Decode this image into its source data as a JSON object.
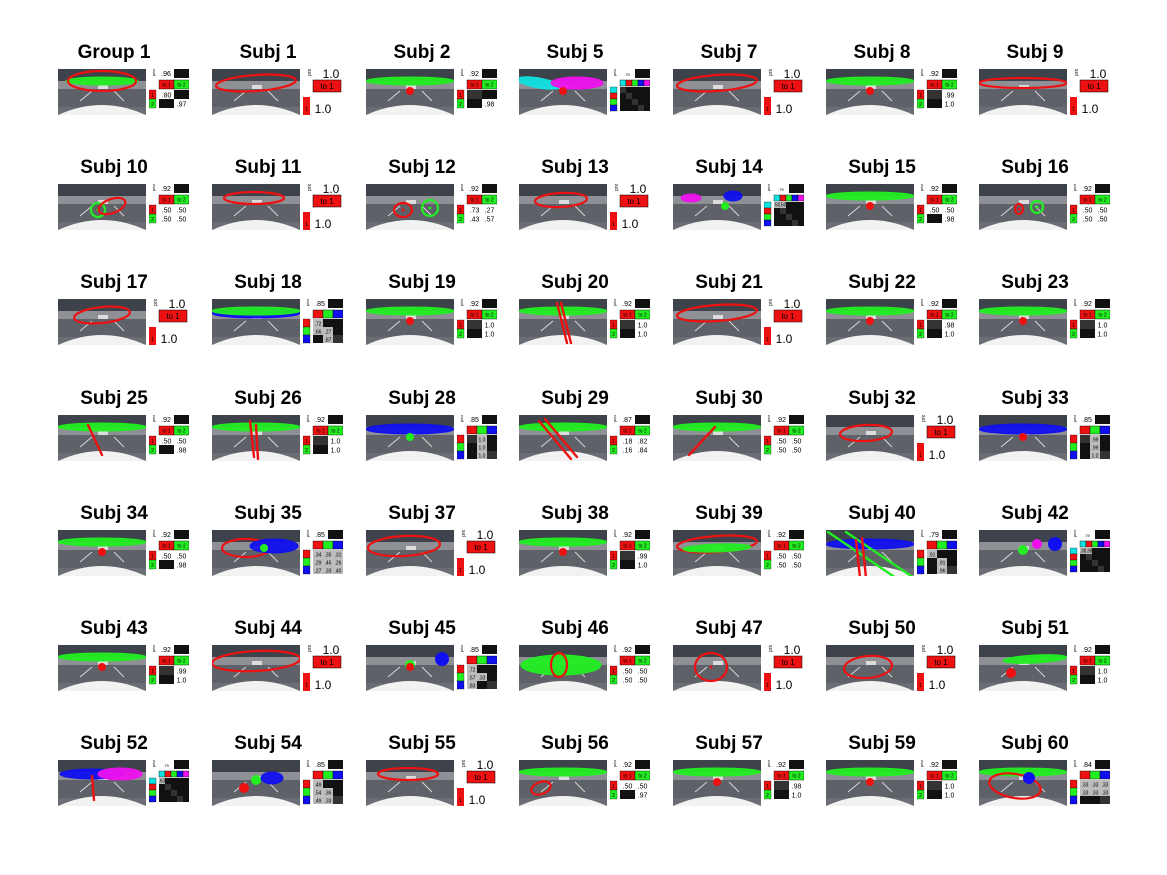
{
  "panels": [
    {
      "title": "Group 1",
      "style": "std2",
      "prior": ".96",
      "rows": [
        [
          ".80",
          ""
        ],
        [
          "",
          ".97"
        ]
      ],
      "shapes": [
        {
          "t": "e",
          "c": "g",
          "a": 1
        },
        {
          "t": "e",
          "c": "r",
          "a": 2
        }
      ]
    },
    {
      "title": "Subj 1",
      "style": "big",
      "prior": "1.0",
      "rows": [
        [
          "to 1"
        ],
        [
          "1.0"
        ]
      ],
      "shapes": [
        {
          "t": "e",
          "c": "r",
          "a": 3
        }
      ]
    },
    {
      "title": "Subj 2",
      "style": "std2",
      "prior": ".92",
      "rows": [
        [
          "",
          ""
        ],
        [
          "",
          ".98"
        ],
        [
          "",
          "1.0"
        ]
      ],
      "shapes": [
        {
          "t": "e",
          "c": "g",
          "a": 4
        },
        {
          "t": "d",
          "c": "r",
          "a": 5
        }
      ]
    },
    {
      "title": "Subj 5",
      "style": "std5",
      "prior": ".79",
      "rows": [
        [
          "",
          ""
        ]
      ],
      "shapes": [
        {
          "t": "e",
          "c": "c",
          "a": 6
        },
        {
          "t": "e",
          "c": "m",
          "a": 7
        },
        {
          "t": "d",
          "c": "r",
          "a": 5
        }
      ]
    },
    {
      "title": "Subj 7",
      "style": "big",
      "prior": "1.0",
      "rows": [
        [
          "to 1"
        ],
        [
          "1.0"
        ]
      ],
      "shapes": [
        {
          "t": "e",
          "c": "r",
          "a": 3
        }
      ]
    },
    {
      "title": "Subj 8",
      "style": "std2",
      "prior": ".92",
      "rows": [
        [
          "",
          ".99"
        ],
        [
          "",
          "1.0"
        ]
      ],
      "shapes": [
        {
          "t": "e",
          "c": "g",
          "a": 4
        },
        {
          "t": "d",
          "c": "r",
          "a": 5
        }
      ]
    },
    {
      "title": "Subj 9",
      "style": "big",
      "prior": "1.0",
      "rows": [
        [
          "to 1"
        ],
        [
          "1.0"
        ]
      ],
      "shapes": [
        {
          "t": "e",
          "c": "r",
          "a": 8
        }
      ]
    },
    {
      "title": "Subj 10",
      "style": "std2",
      "prior": ".92",
      "rows": [
        [
          ".50",
          ".50"
        ],
        [
          ".50",
          ".50"
        ]
      ],
      "shapes": [
        {
          "t": "c",
          "c": "g",
          "a": 9
        },
        {
          "t": "e",
          "c": "r",
          "a": 10
        }
      ]
    },
    {
      "title": "Subj 11",
      "style": "big",
      "prior": "1.0",
      "rows": [
        [
          "to 1"
        ],
        [
          "1.0"
        ]
      ],
      "shapes": [
        {
          "t": "e",
          "c": "r",
          "a": 11
        }
      ]
    },
    {
      "title": "Subj 12",
      "style": "std2",
      "prior": ".92",
      "rows": [
        [
          ".73",
          ".27"
        ],
        [
          ".43",
          ".57"
        ]
      ],
      "shapes": [
        {
          "t": "c",
          "c": "r",
          "a": 12
        },
        {
          "t": "c",
          "c": "g",
          "a": 13
        }
      ]
    },
    {
      "title": "Subj 13",
      "style": "big",
      "prior": "1.0",
      "rows": [
        [
          "to 1"
        ],
        [
          "1.0"
        ]
      ],
      "shapes": [
        {
          "t": "e",
          "c": "r",
          "a": 14
        }
      ]
    },
    {
      "title": "Subj 14",
      "style": "std5",
      "prior": ".79",
      "rows": [
        [
          ".50",
          ".50"
        ]
      ],
      "shapes": [
        {
          "t": "e",
          "c": "m",
          "a": 15
        },
        {
          "t": "d",
          "c": "g",
          "a": 16
        },
        {
          "t": "e",
          "c": "b",
          "a": 17
        }
      ]
    },
    {
      "title": "Subj 15",
      "style": "std2",
      "prior": ".92",
      "rows": [
        [
          ".50",
          ".50"
        ],
        [
          "",
          ".98"
        ]
      ],
      "shapes": [
        {
          "t": "e",
          "c": "g",
          "a": 4
        },
        {
          "t": "d",
          "c": "r",
          "a": 5
        }
      ]
    },
    {
      "title": "Subj 16",
      "style": "std2",
      "prior": ".92",
      "rows": [
        [
          ".50",
          ".50"
        ],
        [
          ".50",
          ".50"
        ]
      ],
      "shapes": [
        {
          "t": "c",
          "c": "r",
          "a": 18
        },
        {
          "t": "c",
          "c": "g",
          "a": 19
        }
      ]
    },
    {
      "title": "Subj 17",
      "style": "big",
      "prior": "1.0",
      "rows": [
        [
          "to 1"
        ],
        [
          "1.0"
        ]
      ],
      "shapes": [
        {
          "t": "e",
          "c": "r",
          "a": 20
        }
      ]
    },
    {
      "title": "Subj 18",
      "style": "std3",
      "prior": ".85",
      "rows": [
        [
          ".72",
          ""
        ],
        [
          ".66",
          ".27"
        ],
        [
          "",
          ".87"
        ]
      ],
      "shapes": [
        {
          "t": "e",
          "c": "b",
          "a": 21
        },
        {
          "t": "e",
          "c": "g",
          "a": 4
        }
      ]
    },
    {
      "title": "Subj 19",
      "style": "std2",
      "prior": ".92",
      "rows": [
        [
          "",
          "1.0"
        ],
        [
          "",
          "1.0"
        ]
      ],
      "shapes": [
        {
          "t": "e",
          "c": "g",
          "a": 4
        },
        {
          "t": "d",
          "c": "r",
          "a": 5
        }
      ]
    },
    {
      "title": "Subj 20",
      "style": "std2",
      "prior": ".92",
      "rows": [
        [
          "",
          "1.0"
        ],
        [
          "",
          "1.0"
        ]
      ],
      "shapes": [
        {
          "t": "e",
          "c": "g",
          "a": 4
        },
        {
          "t": "l",
          "c": "r",
          "a": 22
        }
      ]
    },
    {
      "title": "Subj 21",
      "style": "big",
      "prior": "1.0",
      "rows": [
        [
          "to 1"
        ],
        [
          "1.0"
        ]
      ],
      "shapes": [
        {
          "t": "e",
          "c": "r",
          "a": 3
        }
      ]
    },
    {
      "title": "Subj 22",
      "style": "std2",
      "prior": ".92",
      "rows": [
        [
          "",
          ".98"
        ],
        [
          "",
          "1.0"
        ]
      ],
      "shapes": [
        {
          "t": "e",
          "c": "g",
          "a": 4
        },
        {
          "t": "d",
          "c": "r",
          "a": 5
        }
      ]
    },
    {
      "title": "Subj 23",
      "style": "std2",
      "prior": ".92",
      "rows": [
        [
          "",
          "1.0"
        ],
        [
          "",
          "1.0"
        ]
      ],
      "shapes": [
        {
          "t": "e",
          "c": "g",
          "a": 4
        },
        {
          "t": "d",
          "c": "r",
          "a": 5
        }
      ]
    },
    {
      "title": "Subj 25",
      "style": "std2",
      "prior": ".92",
      "rows": [
        [
          ".50",
          ".50"
        ],
        [
          "",
          ".98"
        ]
      ],
      "shapes": [
        {
          "t": "e",
          "c": "g",
          "a": 4
        },
        {
          "t": "l",
          "c": "r",
          "a": 23
        }
      ]
    },
    {
      "title": "Subj 26",
      "style": "std2",
      "prior": ".92",
      "rows": [
        [
          "",
          "1.0"
        ],
        [
          "",
          "1.0"
        ]
      ],
      "shapes": [
        {
          "t": "e",
          "c": "g",
          "a": 4
        },
        {
          "t": "l",
          "c": "r",
          "a": 24
        }
      ]
    },
    {
      "title": "Subj 28",
      "style": "std3",
      "prior": ".85",
      "rows": [
        [
          "",
          "1.0"
        ],
        [
          "",
          "1.0"
        ],
        [
          "",
          "1.0"
        ]
      ],
      "shapes": [
        {
          "t": "e",
          "c": "b",
          "a": 21
        },
        {
          "t": "d",
          "c": "g",
          "a": 5
        }
      ]
    },
    {
      "title": "Subj 29",
      "style": "std2",
      "prior": ".87",
      "rows": [
        [
          ".18",
          ".82"
        ],
        [
          ".16",
          ".84"
        ]
      ],
      "shapes": [
        {
          "t": "e",
          "c": "g",
          "a": 4
        },
        {
          "t": "l",
          "c": "r",
          "a": 25
        }
      ]
    },
    {
      "title": "Subj 30",
      "style": "std2",
      "prior": ".92",
      "rows": [
        [
          ".50",
          ".50"
        ],
        [
          ".50",
          ".50"
        ]
      ],
      "shapes": [
        {
          "t": "e",
          "c": "g",
          "a": 4
        },
        {
          "t": "l",
          "c": "r",
          "a": 26
        }
      ]
    },
    {
      "title": "Subj 32",
      "style": "big",
      "prior": "1.0",
      "rows": [
        [
          "to 1"
        ],
        [
          "1.0"
        ]
      ],
      "shapes": [
        {
          "t": "e",
          "c": "r",
          "a": 27
        }
      ]
    },
    {
      "title": "Subj 33",
      "style": "std3",
      "prior": ".85",
      "rows": [
        [
          "",
          ".99"
        ],
        [
          "",
          ".99"
        ],
        [
          "",
          "1.0"
        ]
      ],
      "shapes": [
        {
          "t": "e",
          "c": "b",
          "a": 21
        },
        {
          "t": "d",
          "c": "r",
          "a": 5
        }
      ]
    },
    {
      "title": "Subj 34",
      "style": "std2",
      "prior": ".92",
      "rows": [
        [
          ".50",
          ".50"
        ],
        [
          "",
          ".98"
        ]
      ],
      "shapes": [
        {
          "t": "e",
          "c": "g",
          "a": 4
        },
        {
          "t": "d",
          "c": "r",
          "a": 5
        }
      ]
    },
    {
      "title": "Subj 35",
      "style": "std3",
      "prior": ".85",
      "rows": [
        [
          ".34",
          ".35",
          ".31"
        ],
        [
          ".29",
          ".45",
          ".26"
        ],
        [
          ".27",
          ".33",
          ".40"
        ]
      ],
      "shapes": [
        {
          "t": "e",
          "c": "r",
          "a": 28
        },
        {
          "t": "e",
          "c": "b",
          "a": 29
        },
        {
          "t": "d",
          "c": "g",
          "a": 30
        }
      ]
    },
    {
      "title": "Subj 37",
      "style": "big",
      "prior": "1.0",
      "rows": [
        [
          "to 1"
        ],
        [
          "1.0"
        ]
      ],
      "shapes": [
        {
          "t": "e",
          "c": "r",
          "a": 31
        }
      ]
    },
    {
      "title": "Subj 38",
      "style": "std2",
      "prior": ".92",
      "rows": [
        [
          "",
          ".99"
        ],
        [
          "",
          "1.0"
        ]
      ],
      "shapes": [
        {
          "t": "e",
          "c": "g",
          "a": 4
        },
        {
          "t": "d",
          "c": "r",
          "a": 5
        }
      ]
    },
    {
      "title": "Subj 39",
      "style": "std2",
      "prior": ".92",
      "rows": [
        [
          ".50",
          ".50"
        ],
        [
          ".50",
          ".50"
        ]
      ],
      "shapes": [
        {
          "t": "e",
          "c": "r",
          "a": 3
        },
        {
          "t": "e",
          "c": "g",
          "a": 32
        }
      ]
    },
    {
      "title": "Subj 40",
      "style": "std3",
      "prior": ".79",
      "rows": [
        [
          ".91",
          ""
        ],
        [
          "",
          ".91"
        ],
        [
          "",
          ".96"
        ]
      ],
      "shapes": [
        {
          "t": "e",
          "c": "b",
          "a": 21
        },
        {
          "t": "l",
          "c": "g",
          "a": 33
        },
        {
          "t": "l",
          "c": "r",
          "a": 34
        }
      ]
    },
    {
      "title": "Subj 42",
      "style": "std5",
      "prior": ".79",
      "rows": [
        [
          ".38",
          ".38"
        ]
      ],
      "shapes": [
        {
          "t": "d",
          "c": "m",
          "a": 35
        },
        {
          "t": "d",
          "c": "b",
          "a": 36
        },
        {
          "t": "d",
          "c": "g",
          "a": 37
        }
      ]
    },
    {
      "title": "Subj 43",
      "style": "std2",
      "prior": ".92",
      "rows": [
        [
          "",
          ".99"
        ],
        [
          "",
          "1.0"
        ]
      ],
      "shapes": [
        {
          "t": "e",
          "c": "g",
          "a": 4
        },
        {
          "t": "d",
          "c": "r",
          "a": 5
        }
      ]
    },
    {
      "title": "Subj 44",
      "style": "big",
      "prior": "1.0",
      "rows": [
        [
          "to 1"
        ],
        [
          "1.0"
        ]
      ],
      "shapes": [
        {
          "t": "e",
          "c": "r",
          "a": 38
        }
      ]
    },
    {
      "title": "Subj 45",
      "style": "std3",
      "prior": ".85",
      "rows": [
        [
          ".72",
          ""
        ],
        [
          ".57",
          ".33"
        ],
        [
          ".83",
          ""
        ]
      ],
      "shapes": [
        {
          "t": "d",
          "c": "g",
          "a": 37
        },
        {
          "t": "d",
          "c": "b",
          "a": 36
        },
        {
          "t": "d",
          "c": "r",
          "a": 5
        }
      ]
    },
    {
      "title": "Subj 46",
      "style": "std2",
      "prior": ".92",
      "rows": [
        [
          ".50",
          ".50"
        ],
        [
          ".50",
          ".50"
        ]
      ],
      "shapes": [
        {
          "t": "e",
          "c": "g",
          "a": 39
        },
        {
          "t": "e",
          "c": "r",
          "a": 40
        }
      ]
    },
    {
      "title": "Subj 47",
      "style": "big",
      "prior": "1.0",
      "rows": [
        [
          "to 1"
        ],
        [
          "1.0"
        ]
      ],
      "shapes": [
        {
          "t": "c",
          "c": "r",
          "a": 41
        }
      ]
    },
    {
      "title": "Subj 50",
      "style": "big",
      "prior": "1.0",
      "rows": [
        [
          "to 1"
        ],
        [
          "1.0"
        ]
      ],
      "shapes": [
        {
          "t": "e",
          "c": "r",
          "a": 42
        }
      ]
    },
    {
      "title": "Subj 51",
      "style": "std2",
      "prior": ".92",
      "rows": [
        [
          "",
          "1.0"
        ],
        [
          "",
          "1.0"
        ]
      ],
      "shapes": [
        {
          "t": "e",
          "c": "g",
          "a": 43
        },
        {
          "t": "d",
          "c": "r",
          "a": 44
        }
      ]
    },
    {
      "title": "Subj 52",
      "style": "std5",
      "prior": ".79",
      "rows": [
        [
          ".63",
          ""
        ]
      ],
      "shapes": [
        {
          "t": "e",
          "c": "b",
          "a": 45
        },
        {
          "t": "e",
          "c": "m",
          "a": 46
        },
        {
          "t": "l",
          "c": "r",
          "a": 47
        }
      ]
    },
    {
      "title": "Subj 54",
      "style": "std3",
      "prior": ".85",
      "rows": [
        [
          ".49",
          ""
        ],
        [
          ".54",
          ".36"
        ],
        [
          ".49",
          ".33"
        ]
      ],
      "shapes": [
        {
          "t": "d",
          "c": "g",
          "a": 37
        },
        {
          "t": "e",
          "c": "b",
          "a": 48
        },
        {
          "t": "d",
          "c": "r",
          "a": 44
        }
      ]
    },
    {
      "title": "Subj 55",
      "style": "big",
      "prior": "1.0",
      "rows": [
        [
          "to 1"
        ],
        [
          "1.0"
        ]
      ],
      "shapes": [
        {
          "t": "e",
          "c": "r",
          "a": 11
        }
      ]
    },
    {
      "title": "Subj 56",
      "style": "std2",
      "prior": ".92",
      "rows": [
        [
          ".50",
          ".50"
        ],
        [
          "",
          ".97"
        ]
      ],
      "shapes": [
        {
          "t": "e",
          "c": "g",
          "a": 4
        },
        {
          "t": "e",
          "c": "r",
          "a": 49
        }
      ]
    },
    {
      "title": "Subj 57",
      "style": "std2",
      "prior": ".92",
      "rows": [
        [
          "",
          ".98"
        ],
        [
          "",
          "1.0"
        ]
      ],
      "shapes": [
        {
          "t": "e",
          "c": "g",
          "a": 4
        },
        {
          "t": "d",
          "c": "r",
          "a": 5
        }
      ]
    },
    {
      "title": "Subj 59",
      "style": "std2",
      "prior": ".92",
      "rows": [
        [
          "",
          "1.0"
        ],
        [
          "",
          "1.0"
        ]
      ],
      "shapes": [
        {
          "t": "e",
          "c": "g",
          "a": 4
        },
        {
          "t": "d",
          "c": "r",
          "a": 5
        }
      ]
    },
    {
      "title": "Subj 60",
      "style": "std3",
      "prior": ".84",
      "rows": [
        [
          ".33",
          ".33",
          ".33"
        ],
        [
          ".33",
          ".33",
          ".33"
        ]
      ],
      "shapes": [
        {
          "t": "e",
          "c": "g",
          "a": 4
        },
        {
          "t": "e",
          "c": "r",
          "a": 50
        },
        {
          "t": "d",
          "c": "b",
          "a": 51
        }
      ]
    }
  ],
  "labels": {
    "prior": "prior",
    "to1": "to 1",
    "to2": "to 2",
    "k1": "1",
    "k2": "2"
  },
  "colors": {
    "r": "#ee1111",
    "g": "#22ee22",
    "b": "#1010ee",
    "c": "#11e0e0",
    "m": "#ee11ee",
    "grid_dark": "#111111",
    "grid_mid": "#333333"
  }
}
